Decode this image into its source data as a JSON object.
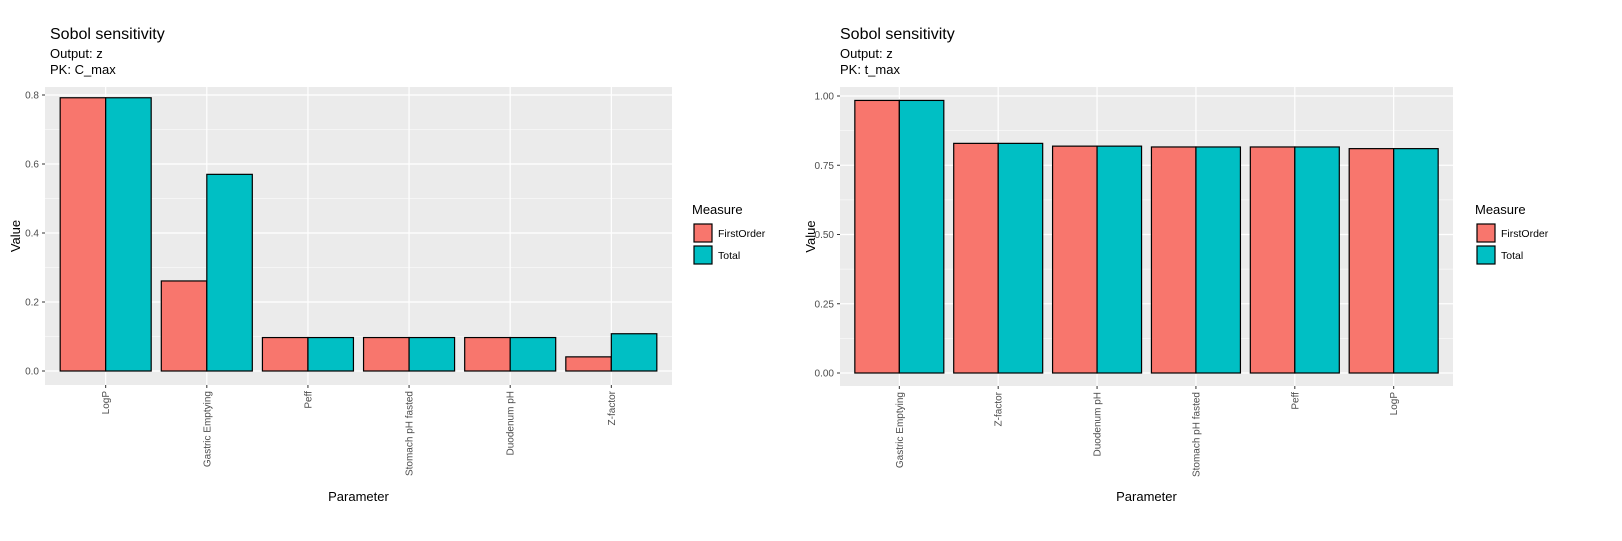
{
  "colors": {
    "FirstOrder": "#F8766D",
    "Total": "#00BFC4",
    "panel": "#EBEBEB",
    "grid": "#FFFFFF"
  },
  "chart_data": [
    {
      "type": "bar",
      "title": "Sobol sensitivity",
      "subtitle": [
        "Output: z",
        "PK: C_max"
      ],
      "xlabel": "Parameter",
      "ylabel": "Value",
      "ylim": [
        0,
        0.8
      ],
      "yticks": [
        0,
        0.2,
        0.4,
        0.6,
        0.8
      ],
      "ytick_labels": [
        "0.0",
        "0.2",
        "0.4",
        "0.6",
        "0.8"
      ],
      "categories": [
        "LogP",
        "Gastric Emptying",
        "Peff",
        "Stomach pH fasted",
        "Duodenum pH",
        "Z-factor"
      ],
      "legend": {
        "title": "Measure",
        "placement": "right",
        "entries": [
          "FirstOrder",
          "Total"
        ]
      },
      "series": [
        {
          "name": "FirstOrder",
          "values": [
            0.792,
            0.261,
            0.097,
            0.097,
            0.097,
            0.041
          ]
        },
        {
          "name": "Total",
          "values": [
            0.792,
            0.57,
            0.097,
            0.097,
            0.097,
            0.108
          ]
        }
      ]
    },
    {
      "type": "bar",
      "title": "Sobol sensitivity",
      "subtitle": [
        "Output: z",
        "PK: t_max"
      ],
      "xlabel": "Parameter",
      "ylabel": "Value",
      "ylim": [
        0,
        1.0
      ],
      "yticks": [
        0,
        0.25,
        0.5,
        0.75,
        1.0
      ],
      "ytick_labels": [
        "0.00",
        "0.25",
        "0.50",
        "0.75",
        "1.00"
      ],
      "categories": [
        "Gastric Emptying",
        "Z-factor",
        "Duodenum pH",
        "Stomach pH fasted",
        "Peff",
        "LogP"
      ],
      "legend": {
        "title": "Measure",
        "placement": "right",
        "entries": [
          "FirstOrder",
          "Total"
        ]
      },
      "series": [
        {
          "name": "FirstOrder",
          "values": [
            0.984,
            0.829,
            0.819,
            0.816,
            0.816,
            0.81
          ]
        },
        {
          "name": "Total",
          "values": [
            0.984,
            0.829,
            0.819,
            0.816,
            0.816,
            0.81
          ]
        }
      ]
    }
  ]
}
